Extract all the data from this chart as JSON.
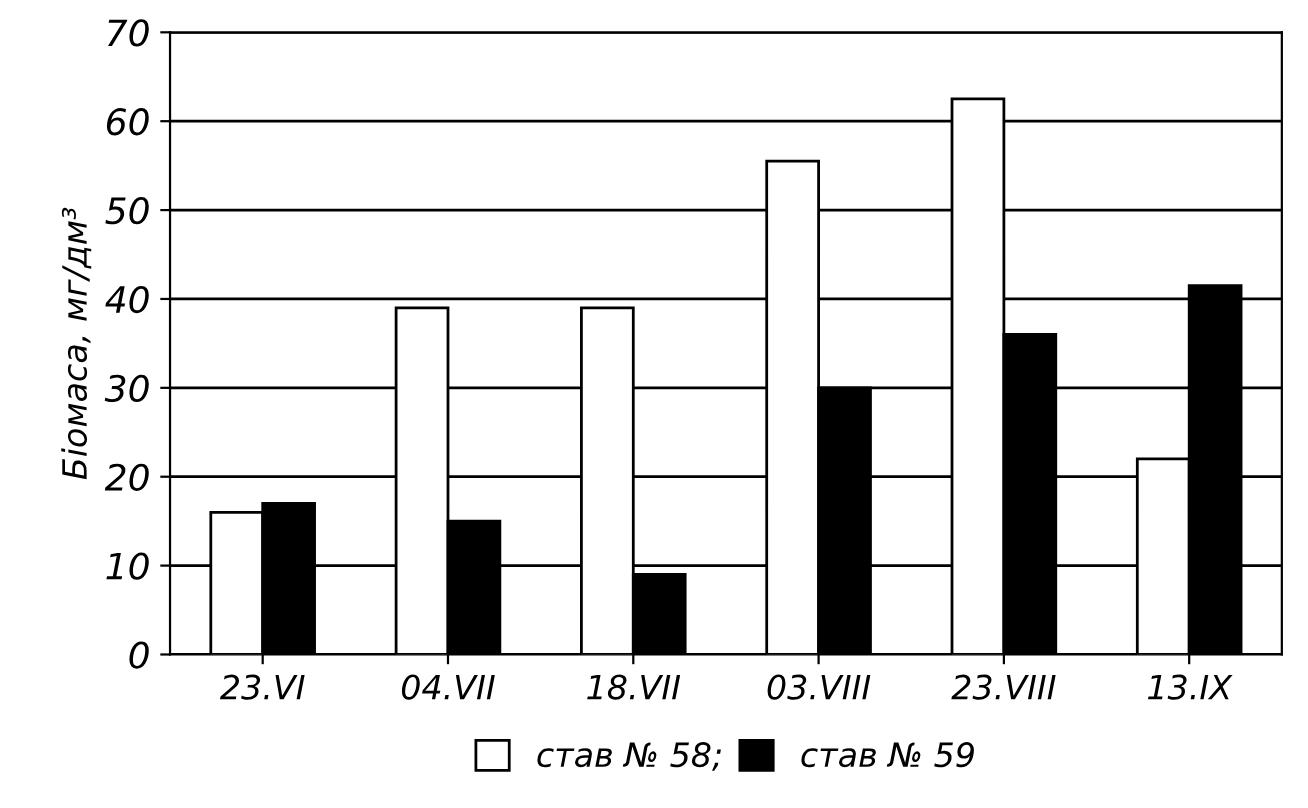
{
  "chart_data": {
    "type": "bar",
    "ylabel": "Біомаса, мг/дм³",
    "categories": [
      "23.VI",
      "04.VII",
      "18.VII",
      "03.VIII",
      "23.VIII",
      "13.IX"
    ],
    "series": [
      {
        "name": "став № 58;",
        "color": "#ffffff",
        "values": [
          16,
          39,
          39,
          55.5,
          62.5,
          22
        ]
      },
      {
        "name": "став № 59",
        "color": "#000000",
        "values": [
          17,
          15,
          9,
          30,
          36,
          41.5
        ]
      }
    ],
    "ylim": [
      0,
      70
    ],
    "yticks": [
      0,
      10,
      20,
      30,
      40,
      50,
      60,
      70
    ],
    "grid": "y",
    "legend": "bottom"
  }
}
